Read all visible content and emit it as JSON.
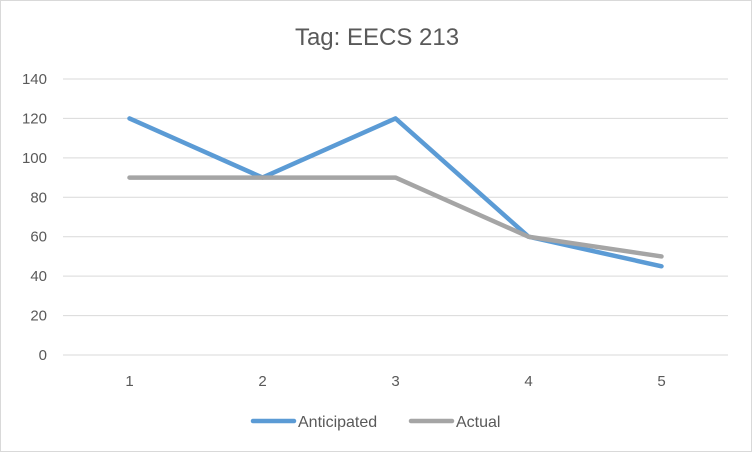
{
  "chart_data": {
    "type": "line",
    "title": "Tag: EECS 213",
    "xlabel": "",
    "ylabel": "",
    "x": [
      1,
      2,
      3,
      4,
      5
    ],
    "x_tick_labels": [
      "1",
      "2",
      "3",
      "4",
      "5"
    ],
    "y_tick_labels": [
      "0",
      "20",
      "40",
      "60",
      "80",
      "100",
      "120",
      "140"
    ],
    "ylim": [
      0,
      140
    ],
    "grid": true,
    "legend_position": "bottom",
    "series": [
      {
        "name": "Anticipated",
        "color": "#5b9bd5",
        "values": [
          120,
          90,
          120,
          60,
          45
        ]
      },
      {
        "name": "Actual",
        "color": "#a5a5a5",
        "values": [
          90,
          90,
          90,
          60,
          50
        ]
      }
    ]
  }
}
